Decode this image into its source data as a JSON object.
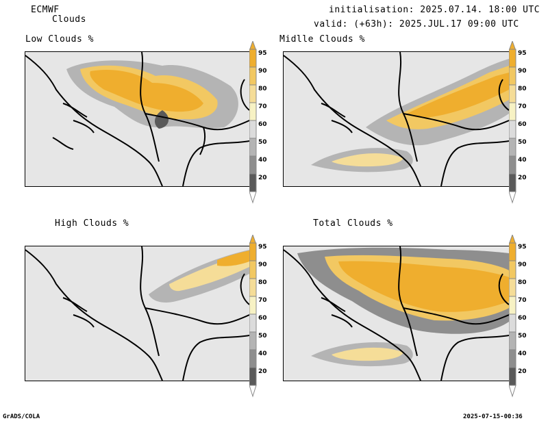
{
  "header": {
    "model": "ECMWF",
    "variable": "Clouds",
    "init_line": "initialisation: 2025.07.14. 18:00 UTC",
    "valid_line": "valid: (+63h): 2025.JUL.17 09:00 UTC"
  },
  "panels": [
    {
      "title": "Low Clouds %"
    },
    {
      "title": "Midlle Clouds %"
    },
    {
      "title": "High Clouds %"
    },
    {
      "title": "Total Clouds %"
    }
  ],
  "colorbar": {
    "levels": [
      "95",
      "90",
      "80",
      "70",
      "60",
      "50",
      "40",
      "20"
    ],
    "colors": [
      "#efae2e",
      "#f2c862",
      "#f5dd98",
      "#f7f2c4",
      "#dcdcdc",
      "#b4b4b4",
      "#8e8e8e",
      "#5a5a5a"
    ],
    "top_color": "#efae2e",
    "bottom_color": "#ffffff"
  },
  "footer": {
    "left": "GrADS/COLA",
    "right": "2025-07-15-00:36"
  }
}
